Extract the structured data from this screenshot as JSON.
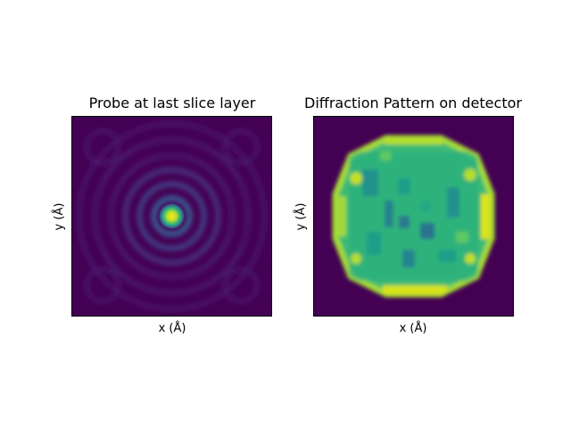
{
  "chart_data": [
    {
      "type": "heatmap",
      "title": "Probe at last slice layer",
      "xlabel": "x (Å)",
      "ylabel": "y (Å)",
      "colormap": "viridis",
      "ticks": "none",
      "content": "centered bright Airy-like probe with concentric rings"
    },
    {
      "type": "heatmap",
      "title": "Diffraction Pattern on detector",
      "xlabel": "x (Å)",
      "ylabel": "y (Å)",
      "colormap": "viridis",
      "ticks": "none",
      "content": "dodecagonal bright-field disk with speckle texture"
    }
  ],
  "colors": {
    "viridis_low": "#440154",
    "viridis_mid": "#21918c",
    "viridis_high": "#fde725"
  }
}
